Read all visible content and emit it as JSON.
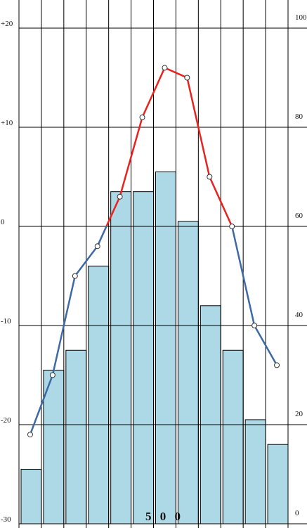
{
  "chart_data": {
    "type": "climate",
    "categories": [
      null,
      null,
      null,
      null,
      null,
      null,
      null,
      null,
      null,
      null,
      null,
      null
    ],
    "series": [
      {
        "type": "bar",
        "axis": "y2",
        "color": "#add8e6",
        "values": [
          11,
          31,
          35,
          52,
          67,
          67,
          71,
          61,
          44,
          35,
          21,
          16
        ]
      },
      {
        "type": "line",
        "axis": "y",
        "color": "#3b6aa5",
        "positive_color": "#e8231f",
        "values": [
          -21,
          -15,
          -5,
          -2,
          3,
          11,
          16,
          15,
          5,
          0,
          -10,
          -14
        ]
      }
    ],
    "ylim": [
      -30,
      20
    ],
    "yticks": [
      {
        "value": 20,
        "label": "+20"
      },
      {
        "value": 10,
        "label": "+10"
      },
      0,
      -10,
      -20,
      -30
    ],
    "y2lim": [
      0,
      100
    ],
    "y2ticks": [
      100,
      80,
      60,
      40,
      20,
      0
    ],
    "grid": true,
    "annotation": "5 0 0"
  }
}
